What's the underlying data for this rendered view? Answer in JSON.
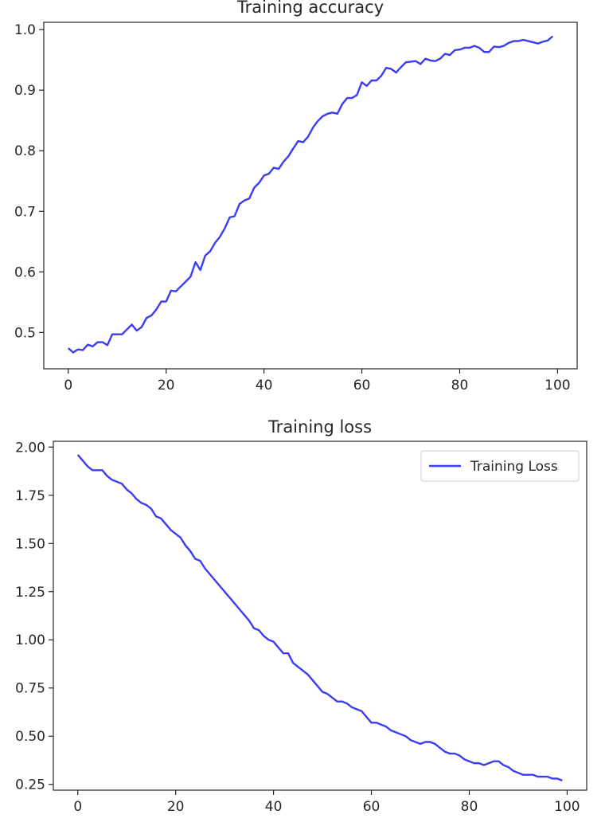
{
  "chart_data": [
    {
      "type": "line",
      "title": "Training accuracy",
      "xlabel": "",
      "ylabel": "",
      "xlim": [
        -5,
        104
      ],
      "ylim": [
        0.44,
        1.012
      ],
      "grid": false,
      "legend": null,
      "xticks": [
        0,
        20,
        40,
        60,
        80,
        100
      ],
      "xtick_labels": [
        "0",
        "20",
        "40",
        "60",
        "80",
        "100"
      ],
      "yticks": [
        0.5,
        0.6,
        0.7,
        0.8,
        0.9,
        1.0
      ],
      "ytick_labels": [
        "0.5",
        "0.6",
        "0.7",
        "0.8",
        "0.9",
        "1.0"
      ],
      "series": [
        {
          "color": "#3c3cf5",
          "x": [
            0,
            1,
            2,
            3,
            4,
            5,
            6,
            7,
            8,
            9,
            10,
            11,
            12,
            13,
            14,
            15,
            16,
            17,
            18,
            19,
            20,
            21,
            22,
            23,
            24,
            25,
            26,
            27,
            28,
            29,
            30,
            31,
            32,
            33,
            34,
            35,
            36,
            37,
            38,
            39,
            40,
            41,
            42,
            43,
            44,
            45,
            46,
            47,
            48,
            49,
            50,
            51,
            52,
            53,
            54,
            55,
            56,
            57,
            58,
            59,
            60,
            61,
            62,
            63,
            64,
            65,
            66,
            67,
            68,
            69,
            70,
            71,
            72,
            73,
            74,
            75,
            76,
            77,
            78,
            79,
            80,
            81,
            82,
            83,
            84,
            85,
            86,
            87,
            88,
            89,
            90,
            91,
            92,
            93,
            94,
            95,
            96,
            97,
            98,
            99
          ],
          "values": [
            0.474,
            0.467,
            0.472,
            0.471,
            0.48,
            0.477,
            0.484,
            0.484,
            0.479,
            0.497,
            0.497,
            0.497,
            0.505,
            0.513,
            0.503,
            0.509,
            0.524,
            0.528,
            0.538,
            0.551,
            0.551,
            0.569,
            0.568,
            0.576,
            0.584,
            0.592,
            0.616,
            0.603,
            0.627,
            0.634,
            0.648,
            0.658,
            0.672,
            0.69,
            0.692,
            0.712,
            0.718,
            0.721,
            0.739,
            0.747,
            0.759,
            0.762,
            0.772,
            0.77,
            0.782,
            0.791,
            0.804,
            0.816,
            0.814,
            0.823,
            0.838,
            0.849,
            0.857,
            0.861,
            0.863,
            0.861,
            0.877,
            0.887,
            0.887,
            0.892,
            0.913,
            0.907,
            0.916,
            0.916,
            0.924,
            0.937,
            0.935,
            0.929,
            0.938,
            0.946,
            0.947,
            0.948,
            0.943,
            0.952,
            0.949,
            0.948,
            0.952,
            0.96,
            0.958,
            0.966,
            0.967,
            0.97,
            0.97,
            0.973,
            0.97,
            0.963,
            0.963,
            0.972,
            0.971,
            0.973,
            0.978,
            0.981,
            0.981,
            0.983,
            0.981,
            0.979,
            0.977,
            0.98,
            0.982,
            0.989
          ]
        }
      ]
    },
    {
      "type": "line",
      "title": "Training loss",
      "xlabel": "",
      "ylabel": "",
      "xlim": [
        -5,
        104
      ],
      "ylim": [
        0.22,
        2.03
      ],
      "grid": false,
      "legend": "top-right",
      "xticks": [
        0,
        20,
        40,
        60,
        80,
        100
      ],
      "xtick_labels": [
        "0",
        "20",
        "40",
        "60",
        "80",
        "100"
      ],
      "yticks": [
        0.25,
        0.5,
        0.75,
        1.0,
        1.25,
        1.5,
        1.75,
        2.0
      ],
      "ytick_labels": [
        "0.25",
        "0.50",
        "0.75",
        "1.00",
        "1.25",
        "1.50",
        "1.75",
        "2.00"
      ],
      "series": [
        {
          "name": "Training Loss",
          "color": "#3c3cf5",
          "x": [
            0,
            1,
            2,
            3,
            4,
            5,
            6,
            7,
            8,
            9,
            10,
            11,
            12,
            13,
            14,
            15,
            16,
            17,
            18,
            19,
            20,
            21,
            22,
            23,
            24,
            25,
            26,
            27,
            28,
            29,
            30,
            31,
            32,
            33,
            34,
            35,
            36,
            37,
            38,
            39,
            40,
            41,
            42,
            43,
            44,
            45,
            46,
            47,
            48,
            49,
            50,
            51,
            52,
            53,
            54,
            55,
            56,
            57,
            58,
            59,
            60,
            61,
            62,
            63,
            64,
            65,
            66,
            67,
            68,
            69,
            70,
            71,
            72,
            73,
            74,
            75,
            76,
            77,
            78,
            79,
            80,
            81,
            82,
            83,
            84,
            85,
            86,
            87,
            88,
            89,
            90,
            91,
            92,
            93,
            94,
            95,
            96,
            97,
            98,
            99
          ],
          "values": [
            1.96,
            1.93,
            1.9,
            1.88,
            1.88,
            1.88,
            1.85,
            1.83,
            1.82,
            1.81,
            1.78,
            1.76,
            1.73,
            1.71,
            1.7,
            1.68,
            1.64,
            1.63,
            1.6,
            1.57,
            1.55,
            1.53,
            1.49,
            1.46,
            1.42,
            1.41,
            1.37,
            1.34,
            1.31,
            1.28,
            1.25,
            1.22,
            1.19,
            1.16,
            1.13,
            1.1,
            1.06,
            1.05,
            1.02,
            1.0,
            0.99,
            0.96,
            0.93,
            0.93,
            0.88,
            0.86,
            0.84,
            0.82,
            0.79,
            0.76,
            0.73,
            0.72,
            0.7,
            0.68,
            0.68,
            0.67,
            0.65,
            0.64,
            0.63,
            0.6,
            0.57,
            0.57,
            0.56,
            0.55,
            0.53,
            0.52,
            0.51,
            0.5,
            0.48,
            0.47,
            0.46,
            0.47,
            0.47,
            0.46,
            0.44,
            0.42,
            0.41,
            0.41,
            0.4,
            0.38,
            0.37,
            0.36,
            0.36,
            0.35,
            0.36,
            0.37,
            0.37,
            0.35,
            0.34,
            0.32,
            0.31,
            0.3,
            0.3,
            0.3,
            0.29,
            0.29,
            0.29,
            0.28,
            0.28,
            0.27
          ]
        }
      ]
    }
  ]
}
